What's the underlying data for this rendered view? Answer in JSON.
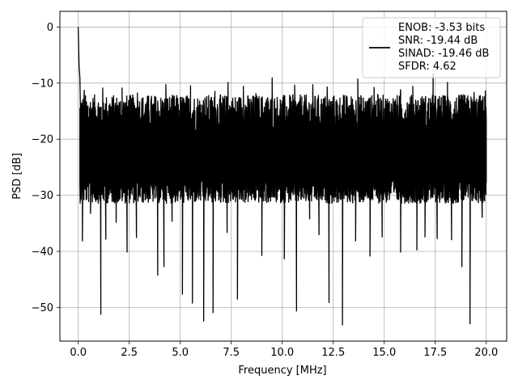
{
  "chart_data": {
    "type": "line",
    "xlabel": "Frequency [MHz]",
    "ylabel": "PSD [dB]",
    "xlim": [
      -0.9,
      21.0
    ],
    "ylim": [
      -56,
      2.8
    ],
    "xticks": [
      0.0,
      2.5,
      5.0,
      7.5,
      10.0,
      12.5,
      15.0,
      17.5,
      20.0
    ],
    "xtick_labels": [
      "0.0",
      "2.5",
      "5.0",
      "7.5",
      "10.0",
      "12.5",
      "15.0",
      "17.5",
      "20.0"
    ],
    "yticks": [
      0,
      -10,
      -20,
      -30,
      -40,
      -50
    ],
    "ytick_labels": [
      "0",
      "−10",
      "−20",
      "−30",
      "−40",
      "−50"
    ],
    "grid": true,
    "legend_position": "upper right",
    "legend_entries": [
      "ENOB: -3.53 bits",
      "SNR: -19.44 dB",
      "SINAD: -19.46 dB",
      "SFDR: 4.62"
    ],
    "series": [
      {
        "color": "#000000",
        "peaks": [
          [
            0.0,
            0.0
          ],
          [
            0.04,
            -7.0
          ],
          [
            0.08,
            -9.0
          ],
          [
            0.12,
            -17.0
          ]
        ],
        "noise_band": {
          "x_start": 0.08,
          "x_end": 20.0,
          "upper_mean": -15.5,
          "lower_mean": -25.5
        },
        "spikes_down": [
          [
            0.2,
            -38.2
          ],
          [
            0.6,
            -33.3
          ],
          [
            1.1,
            -51.3
          ],
          [
            1.35,
            -37.9
          ],
          [
            1.85,
            -34.9
          ],
          [
            2.4,
            -40.2
          ],
          [
            2.85,
            -37.6
          ],
          [
            3.9,
            -44.3
          ],
          [
            4.2,
            -42.8
          ],
          [
            4.6,
            -34.7
          ],
          [
            5.1,
            -47.7
          ],
          [
            5.6,
            -49.3
          ],
          [
            6.15,
            -52.5
          ],
          [
            6.6,
            -51.0
          ],
          [
            7.3,
            -36.7
          ],
          [
            7.8,
            -48.6
          ],
          [
            9.0,
            -40.8
          ],
          [
            10.1,
            -41.4
          ],
          [
            10.7,
            -50.7
          ],
          [
            11.35,
            -34.3
          ],
          [
            11.8,
            -37.1
          ],
          [
            12.3,
            -49.2
          ],
          [
            12.95,
            -53.2
          ],
          [
            13.6,
            -38.2
          ],
          [
            14.3,
            -40.9
          ],
          [
            14.9,
            -37.5
          ],
          [
            15.8,
            -40.2
          ],
          [
            16.6,
            -39.8
          ],
          [
            17.0,
            -37.5
          ],
          [
            17.6,
            -37.8
          ],
          [
            18.3,
            -38.0
          ],
          [
            18.8,
            -42.8
          ],
          [
            19.2,
            -53.0
          ],
          [
            19.8,
            -34.0
          ]
        ],
        "spikes_up": [
          [
            0.3,
            -11.2
          ],
          [
            1.2,
            -10.8
          ],
          [
            2.15,
            -10.8
          ],
          [
            2.9,
            -11.7
          ],
          [
            4.3,
            -10.2
          ],
          [
            5.5,
            -10.4
          ],
          [
            6.7,
            -11.4
          ],
          [
            7.35,
            -9.8
          ],
          [
            8.1,
            -10.5
          ],
          [
            8.7,
            -11.8
          ],
          [
            9.5,
            -9.0
          ],
          [
            10.6,
            -10.3
          ],
          [
            11.5,
            -10.2
          ],
          [
            12.2,
            -10.6
          ],
          [
            13.7,
            -9.2
          ],
          [
            14.5,
            -10.7
          ],
          [
            15.8,
            -11.1
          ],
          [
            16.4,
            -10.5
          ],
          [
            17.4,
            -8.3
          ],
          [
            18.1,
            -9.8
          ],
          [
            18.9,
            -12.0
          ],
          [
            19.4,
            -11.6
          ],
          [
            19.95,
            -11.3
          ]
        ]
      }
    ]
  }
}
